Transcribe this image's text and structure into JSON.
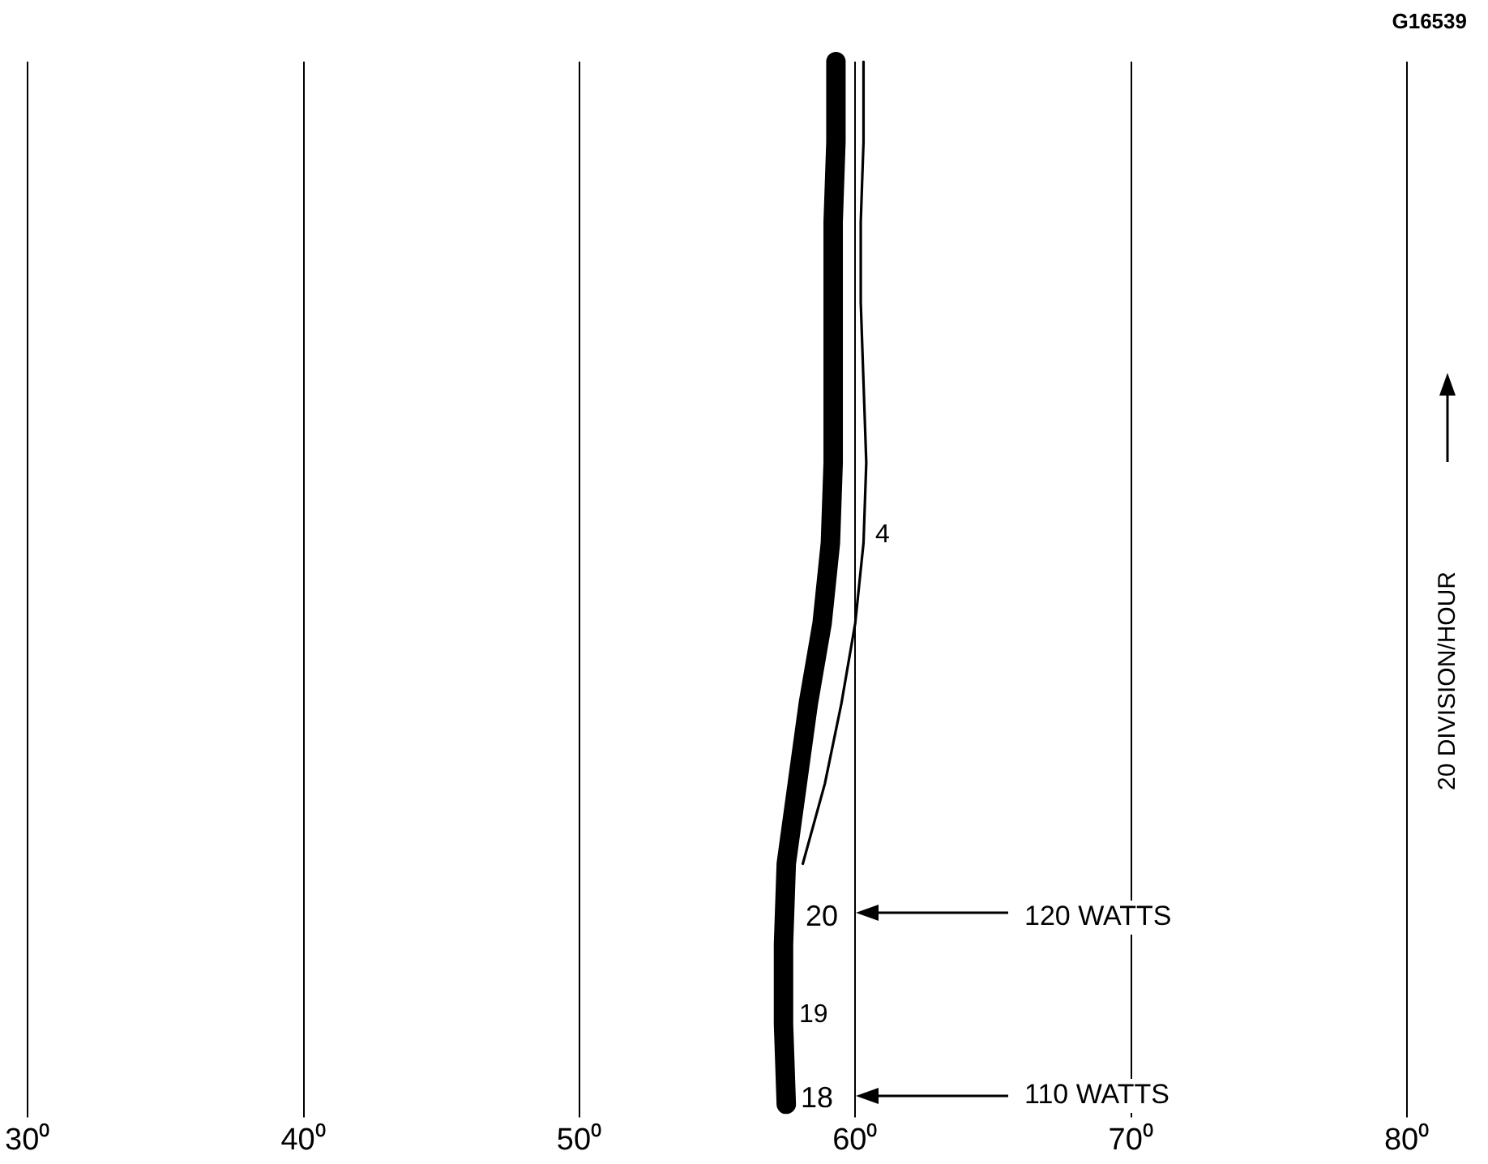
{
  "chart_data": {
    "type": "line",
    "orientation": "horizontal",
    "ylabel": "20 DIVISION/HOUR",
    "categories": [
      null,
      null,
      null,
      null,
      null,
      null,
      null,
      null,
      null,
      null,
      null,
      null,
      null,
      null
    ],
    "series": [
      {
        "color": "#000000",
        "values": [
          59.3,
          59.3,
          59.2,
          59.2,
          59.2,
          59.2,
          59.1,
          58.8,
          58.3,
          57.9,
          57.5,
          57.4,
          57.4,
          57.5
        ]
      },
      {
        "color": "#000000",
        "values": [
          60.3,
          60.3,
          60.2,
          60.2,
          60.3,
          60.4,
          60.3,
          60.0,
          59.5,
          58.9,
          58.1,
          null,
          null,
          null
        ]
      }
    ],
    "xlim": [
      30,
      80
    ],
    "xticks": [
      {
        "value": 30,
        "label": "30⁰"
      },
      {
        "value": 40,
        "label": "40⁰"
      },
      {
        "value": 50,
        "label": "50⁰"
      },
      {
        "value": 60,
        "label": "60⁰"
      },
      {
        "value": 70,
        "label": "70⁰"
      },
      {
        "value": 80,
        "label": "80⁰"
      }
    ],
    "tick_labels": "x",
    "grid": "x",
    "legend": false,
    "marker": "none",
    "line_style": "solid",
    "annotations": [
      "G16539",
      "4",
      "20",
      "19",
      "18",
      "120 WATTS",
      "110 WATTS"
    ]
  }
}
